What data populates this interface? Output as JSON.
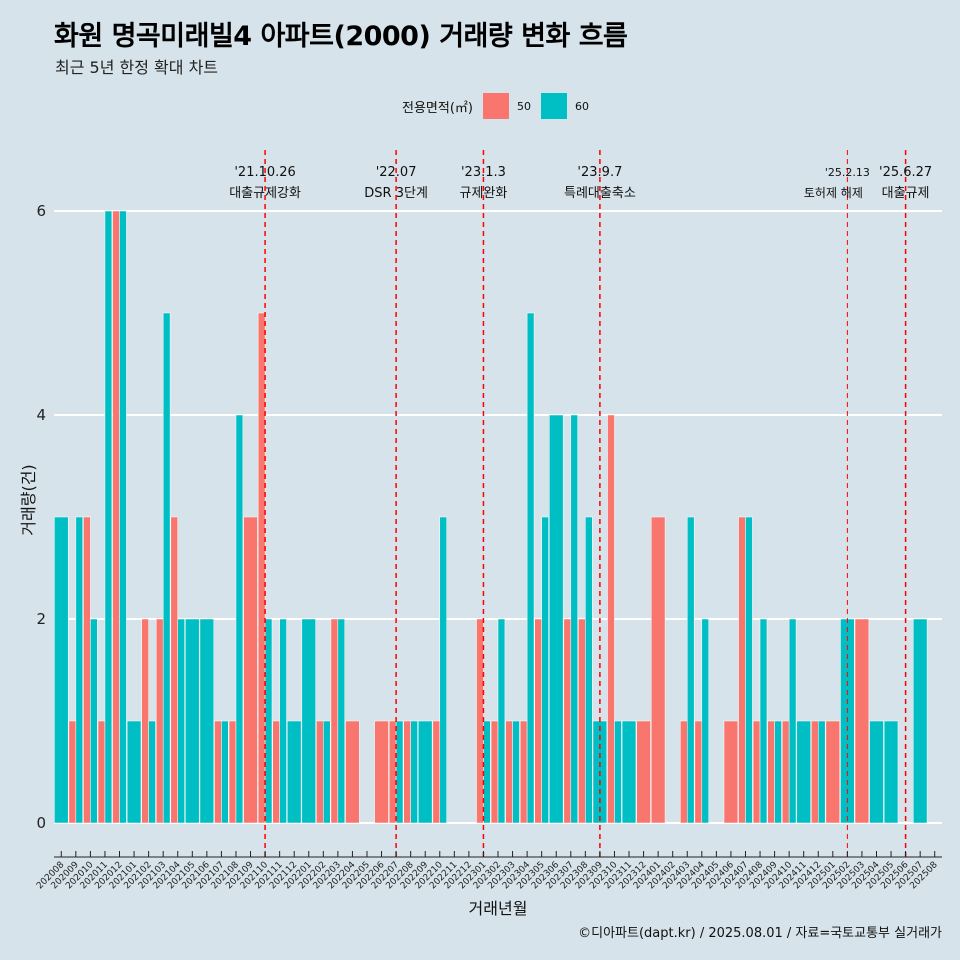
{
  "title": "화원 명곡미래빌4 아파트(2000) 거래량 변화 흐름",
  "subtitle": "최근 5년 한정 확대 차트",
  "caption": "©디아파트(dapt.kr) / 2025.08.01 / 자료=국토교통부 실거래가",
  "legend": {
    "title": "전용면적(㎡)",
    "items": [
      {
        "label": "50",
        "color": "#F8766D"
      },
      {
        "label": "60",
        "color": "#00BFC4"
      }
    ]
  },
  "chart_data": {
    "type": "bar",
    "xlabel": "거래년월",
    "ylabel": "거래량(건)",
    "ylim": [
      -0.55,
      6.6
    ],
    "yticks": [
      0,
      2,
      4,
      6
    ],
    "categories": [
      "202008",
      "202009",
      "202010",
      "202011",
      "202012",
      "202101",
      "202102",
      "202103",
      "202104",
      "202105",
      "202106",
      "202107",
      "202108",
      "202109",
      "202110",
      "202111",
      "202112",
      "202201",
      "202202",
      "202203",
      "202204",
      "202205",
      "202206",
      "202207",
      "202208",
      "202209",
      "202210",
      "202211",
      "202212",
      "202301",
      "202302",
      "202303",
      "202304",
      "202305",
      "202306",
      "202307",
      "202308",
      "202309",
      "202310",
      "202311",
      "202312",
      "202401",
      "202402",
      "202403",
      "202404",
      "202405",
      "202406",
      "202407",
      "202408",
      "202409",
      "202410",
      "202411",
      "202412",
      "202501",
      "202502",
      "202503",
      "202504",
      "202505",
      "202506",
      "202507",
      "202508"
    ],
    "series": [
      {
        "name": "50",
        "color": "#F8766D",
        "values": [
          null,
          1,
          3,
          1,
          6,
          null,
          2,
          2,
          3,
          null,
          null,
          1,
          1,
          3,
          5,
          1,
          null,
          null,
          1,
          2,
          1,
          null,
          1,
          1,
          1,
          null,
          1,
          null,
          null,
          2,
          1,
          1,
          1,
          2,
          null,
          2,
          2,
          null,
          4,
          null,
          1,
          3,
          null,
          1,
          1,
          null,
          1,
          3,
          1,
          1,
          1,
          null,
          1,
          1,
          null,
          2,
          null,
          null,
          null,
          null,
          null
        ]
      },
      {
        "name": "60",
        "color": "#00BFC4",
        "values": [
          3,
          3,
          2,
          6,
          6,
          1,
          1,
          5,
          2,
          2,
          2,
          1,
          4,
          null,
          2,
          2,
          1,
          2,
          1,
          2,
          null,
          null,
          null,
          1,
          1,
          1,
          3,
          null,
          null,
          1,
          2,
          1,
          5,
          3,
          4,
          4,
          3,
          1,
          1,
          1,
          null,
          null,
          null,
          3,
          2,
          null,
          null,
          3,
          2,
          1,
          2,
          1,
          1,
          null,
          2,
          null,
          1,
          1,
          null,
          2,
          null
        ]
      }
    ],
    "events": [
      {
        "date": "'21.10.26",
        "label": "대출규제강화",
        "month": "202110"
      },
      {
        "date": "'22.07",
        "label": "DSR 3단계",
        "month": "202207"
      },
      {
        "date": "'23.1.3",
        "label": "규제완화",
        "month": "202301"
      },
      {
        "date": "'23.9.7",
        "label": "특례대출축소",
        "month": "202309"
      },
      {
        "date": "'25.2.13",
        "label": "토허제 해제",
        "month": "202502"
      },
      {
        "date": "'25.6.27",
        "label": "대출규제",
        "month": "202506"
      }
    ]
  }
}
